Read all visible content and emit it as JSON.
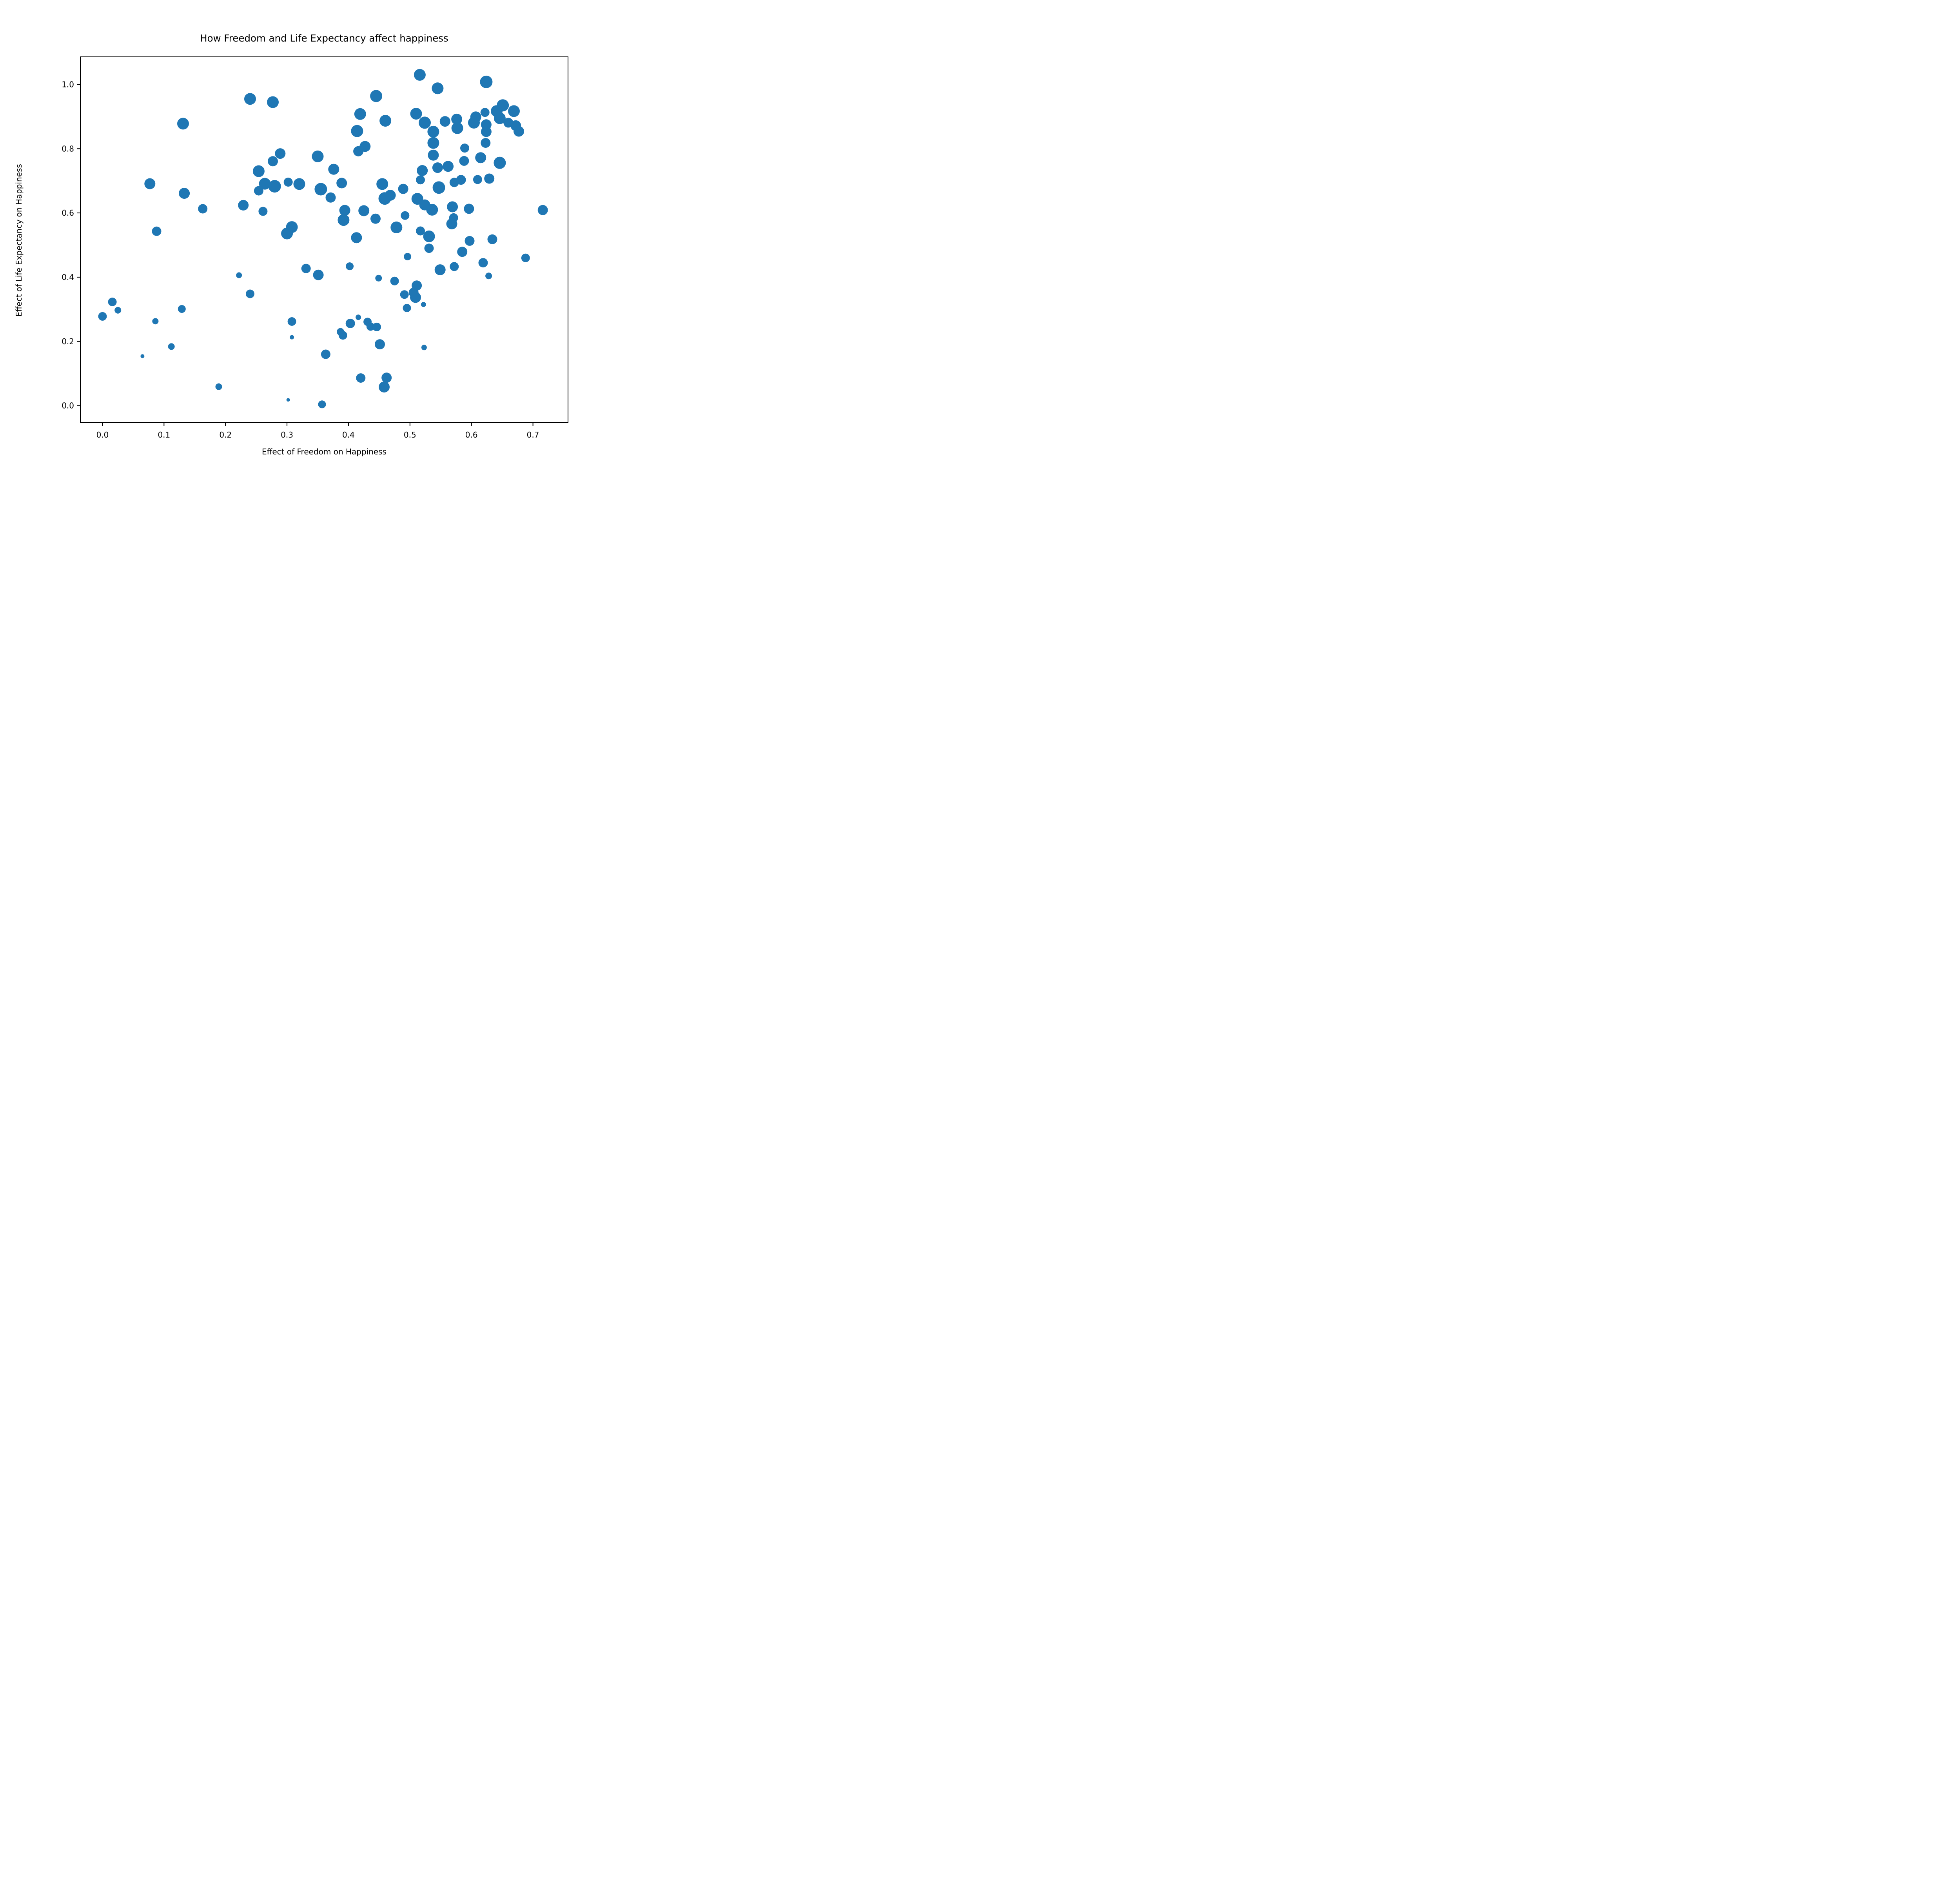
{
  "chart_data": {
    "type": "scatter",
    "title": "How Freedom and Life Expectancy affect happiness",
    "xlabel": "Effect of Freedom on Happiness",
    "ylabel": "Effect of Life Expectancy on Happiness",
    "x_ticks": [
      0.0,
      0.1,
      0.2,
      0.3,
      0.4,
      0.5,
      0.6,
      0.7
    ],
    "y_ticks": [
      0.0,
      0.2,
      0.4,
      0.6,
      0.8,
      1.0
    ],
    "xlim": [
      -0.036,
      0.757
    ],
    "ylim": [
      -0.053,
      1.086
    ],
    "grid": false,
    "legend": null,
    "marker_color": "#1f77b4",
    "axis_color": "#000000",
    "points": [
      [
        0.131,
        0.878,
        15
      ],
      [
        0.24,
        0.955,
        15
      ],
      [
        0.277,
        0.945,
        15
      ],
      [
        0.445,
        0.964,
        15.5
      ],
      [
        0.419,
        0.908,
        15
      ],
      [
        0.46,
        0.887,
        15
      ],
      [
        0.414,
        0.855,
        15.5
      ],
      [
        0.427,
        0.807,
        14
      ],
      [
        0.416,
        0.792,
        13
      ],
      [
        0.289,
        0.785,
        13.5
      ],
      [
        0.277,
        0.761,
        13
      ],
      [
        0.254,
        0.73,
        15
      ],
      [
        0.35,
        0.776,
        15
      ],
      [
        0.376,
        0.736,
        14
      ],
      [
        0.516,
        1.03,
        15
      ],
      [
        0.545,
        0.988,
        15
      ],
      [
        0.624,
        1.008,
        16
      ],
      [
        0.51,
        0.909,
        15
      ],
      [
        0.524,
        0.881,
        15.5
      ],
      [
        0.538,
        0.853,
        15
      ],
      [
        0.557,
        0.885,
        13.5
      ],
      [
        0.576,
        0.892,
        14
      ],
      [
        0.577,
        0.864,
        15
      ],
      [
        0.538,
        0.818,
        15
      ],
      [
        0.538,
        0.78,
        14
      ],
      [
        0.651,
        0.935,
        15.5
      ],
      [
        0.669,
        0.917,
        15
      ],
      [
        0.641,
        0.917,
        15
      ],
      [
        0.646,
        0.895,
        15
      ],
      [
        0.622,
        0.913,
        11.5
      ],
      [
        0.607,
        0.899,
        14
      ],
      [
        0.604,
        0.881,
        15
      ],
      [
        0.624,
        0.875,
        13.5
      ],
      [
        0.624,
        0.853,
        13.5
      ],
      [
        0.66,
        0.881,
        12.5
      ],
      [
        0.672,
        0.872,
        13.5
      ],
      [
        0.677,
        0.854,
        13.5
      ],
      [
        0.623,
        0.818,
        12.5
      ],
      [
        0.589,
        0.802,
        11.5
      ],
      [
        0.588,
        0.762,
        12.5
      ],
      [
        0.615,
        0.772,
        14
      ],
      [
        0.646,
        0.756,
        15.5
      ],
      [
        0.077,
        0.691,
        14
      ],
      [
        0.133,
        0.661,
        14
      ],
      [
        0.163,
        0.613,
        12
      ],
      [
        0.229,
        0.624,
        13.5
      ],
      [
        0.088,
        0.543,
        12
      ],
      [
        0.222,
        0.406,
        7.5
      ],
      [
        0.254,
        0.669,
        12
      ],
      [
        0.264,
        0.691,
        15
      ],
      [
        0.28,
        0.683,
        16
      ],
      [
        0.302,
        0.696,
        11.5
      ],
      [
        0.32,
        0.69,
        15
      ],
      [
        0.355,
        0.674,
        16
      ],
      [
        0.371,
        0.648,
        13
      ],
      [
        0.389,
        0.693,
        13.5
      ],
      [
        0.455,
        0.69,
        15
      ],
      [
        0.459,
        0.645,
        16
      ],
      [
        0.468,
        0.655,
        14
      ],
      [
        0.489,
        0.675,
        13
      ],
      [
        0.261,
        0.605,
        11.5
      ],
      [
        0.394,
        0.608,
        14
      ],
      [
        0.392,
        0.578,
        15
      ],
      [
        0.425,
        0.607,
        14
      ],
      [
        0.444,
        0.582,
        13
      ],
      [
        0.478,
        0.555,
        15
      ],
      [
        0.308,
        0.556,
        15
      ],
      [
        0.3,
        0.536,
        15
      ],
      [
        0.413,
        0.523,
        14
      ],
      [
        0.331,
        0.427,
        12
      ],
      [
        0.351,
        0.407,
        13.5
      ],
      [
        0.402,
        0.434,
        10
      ],
      [
        0.449,
        0.397,
        8.5
      ],
      [
        0.475,
        0.388,
        11
      ],
      [
        0.24,
        0.348,
        11
      ],
      [
        0.517,
        0.703,
        11.5
      ],
      [
        0.547,
        0.679,
        16
      ],
      [
        0.572,
        0.695,
        12
      ],
      [
        0.583,
        0.703,
        12.5
      ],
      [
        0.61,
        0.704,
        11.5
      ],
      [
        0.629,
        0.707,
        13
      ],
      [
        0.545,
        0.741,
        13.5
      ],
      [
        0.562,
        0.745,
        14
      ],
      [
        0.52,
        0.732,
        14
      ],
      [
        0.512,
        0.644,
        15
      ],
      [
        0.524,
        0.625,
        14
      ],
      [
        0.536,
        0.61,
        15
      ],
      [
        0.492,
        0.592,
        11
      ],
      [
        0.569,
        0.619,
        14
      ],
      [
        0.596,
        0.613,
        13
      ],
      [
        0.571,
        0.585,
        11.5
      ],
      [
        0.568,
        0.566,
        14
      ],
      [
        0.517,
        0.544,
        11.5
      ],
      [
        0.531,
        0.527,
        15
      ],
      [
        0.531,
        0.49,
        12
      ],
      [
        0.597,
        0.513,
        12.5
      ],
      [
        0.634,
        0.518,
        12.5
      ],
      [
        0.585,
        0.479,
        13
      ],
      [
        0.688,
        0.46,
        11
      ],
      [
        0.619,
        0.445,
        12
      ],
      [
        0.572,
        0.433,
        11.5
      ],
      [
        0.549,
        0.423,
        14
      ],
      [
        0.628,
        0.404,
        8.5
      ],
      [
        0.716,
        0.609,
        13
      ],
      [
        0.496,
        0.464,
        9.5
      ],
      [
        0.016,
        0.323,
        11
      ],
      [
        0.025,
        0.297,
        8.5
      ],
      [
        0.0,
        0.278,
        11
      ],
      [
        0.129,
        0.301,
        10
      ],
      [
        0.086,
        0.263,
        8
      ],
      [
        0.112,
        0.184,
        8.5
      ],
      [
        0.065,
        0.154,
        5
      ],
      [
        0.189,
        0.059,
        8.5
      ],
      [
        0.308,
        0.262,
        11
      ],
      [
        0.403,
        0.256,
        12
      ],
      [
        0.416,
        0.275,
        7
      ],
      [
        0.431,
        0.261,
        10.5
      ],
      [
        0.436,
        0.246,
        10.5
      ],
      [
        0.446,
        0.245,
        11
      ],
      [
        0.387,
        0.23,
        9.5
      ],
      [
        0.391,
        0.219,
        11
      ],
      [
        0.308,
        0.213,
        5.5
      ],
      [
        0.451,
        0.191,
        13
      ],
      [
        0.363,
        0.16,
        12
      ],
      [
        0.42,
        0.086,
        12
      ],
      [
        0.462,
        0.087,
        13
      ],
      [
        0.458,
        0.058,
        14
      ],
      [
        0.302,
        0.018,
        4.5
      ],
      [
        0.357,
        0.004,
        10
      ],
      [
        0.511,
        0.374,
        13
      ],
      [
        0.506,
        0.352,
        12.5
      ],
      [
        0.509,
        0.337,
        14
      ],
      [
        0.491,
        0.346,
        11
      ],
      [
        0.495,
        0.304,
        10.5
      ],
      [
        0.522,
        0.315,
        6.5
      ],
      [
        0.523,
        0.181,
        7
      ]
    ]
  }
}
